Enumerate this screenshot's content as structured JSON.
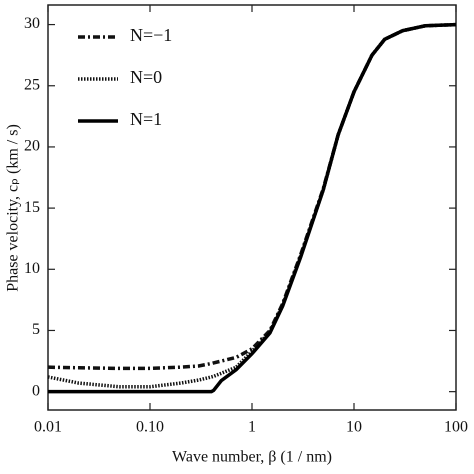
{
  "chart_data": {
    "type": "line",
    "xlabel": "Wave number,  β (1 / nm)",
    "ylabel": "Phase velocity, cₚ (km / s)",
    "x": [
      0.01,
      0.02,
      0.05,
      0.1,
      0.2,
      0.3,
      0.4,
      0.42,
      0.5,
      0.7,
      1,
      1.5,
      2,
      3,
      5,
      7,
      10,
      15,
      20,
      30,
      50,
      100
    ],
    "series": [
      {
        "name": "N=−1",
        "color": "#111111",
        "style": "dashdot",
        "values": [
          2.0,
          1.95,
          1.9,
          1.9,
          2.0,
          2.1,
          2.3,
          2.35,
          2.5,
          2.8,
          3.5,
          5.0,
          7.2,
          11.2,
          16.6,
          21.0,
          24.5,
          27.5,
          28.8,
          29.5,
          29.9,
          30.0
        ]
      },
      {
        "name": "N=0",
        "color": "#111111",
        "style": "dotted",
        "values": [
          1.2,
          0.7,
          0.4,
          0.4,
          0.7,
          0.95,
          1.2,
          1.25,
          1.5,
          2.0,
          3.3,
          4.9,
          7.1,
          11.1,
          16.5,
          21.0,
          24.5,
          27.5,
          28.8,
          29.5,
          29.9,
          30.0
        ]
      },
      {
        "name": "N=1",
        "color": "#000000",
        "style": "solid",
        "values": [
          0,
          0,
          0,
          0,
          0,
          0,
          0,
          0.1,
          0.9,
          1.8,
          3.1,
          4.8,
          7.0,
          11.0,
          16.5,
          21.0,
          24.5,
          27.5,
          28.8,
          29.5,
          29.9,
          30.0
        ]
      }
    ],
    "xscale": "log",
    "xlim": [
      0.01,
      100
    ],
    "xticks": [
      {
        "value": 0.01,
        "label": "0.01"
      },
      {
        "value": 0.1,
        "label": "0.10"
      },
      1,
      10,
      100
    ],
    "ylim": [
      -1.5,
      31.6
    ],
    "yticks": [
      0,
      5,
      10,
      15,
      20,
      25,
      30
    ],
    "legend": "upper left"
  }
}
